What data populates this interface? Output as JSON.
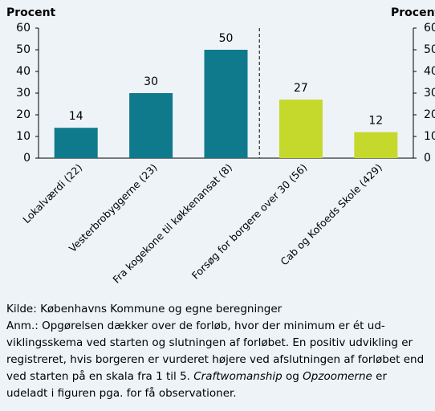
{
  "chart_data": {
    "type": "bar",
    "ylabel": "Procent",
    "y2label": "Procent",
    "categories": [
      "Lokalværdi (22)",
      "Vesterbrobyggerne (23)",
      "Fra kogekone til køkkenansat (8)",
      "Forsøg for borgere over 30 (56)",
      "Cab og Kofoeds Skole (429)"
    ],
    "values": [
      14,
      30,
      50,
      27,
      12
    ],
    "colors": [
      "#0f7a8c",
      "#0f7a8c",
      "#0f7a8c",
      "#c5d92d",
      "#c5d92d"
    ],
    "ylim": [
      0,
      60
    ],
    "yticks": [
      0,
      10,
      20,
      30,
      40,
      50,
      60
    ],
    "y2lim": [
      0,
      60
    ],
    "y2ticks": [
      0,
      10,
      20,
      30,
      40,
      50,
      60
    ]
  },
  "source": "Kilde: Københavns Kommune og egne beregninger",
  "note": [
    {
      "text": "Anm.: Opgørelsen dækker over de forløb, hvor der minimum er ét ud­viklingsskema ved starten og slutningen af forløbet. En positiv udvik­ling er registreret, hvis borgeren er vurderet højere ved afslutningen af forløbet end ved starten på en skala fra 1 til 5. "
    },
    {
      "text": "Craftwomanship",
      "italic": true
    },
    {
      "text": " og "
    },
    {
      "text": "Opzoomerne",
      "italic": true
    },
    {
      "text": " er udeladt i figuren pga. for få observationer."
    }
  ]
}
